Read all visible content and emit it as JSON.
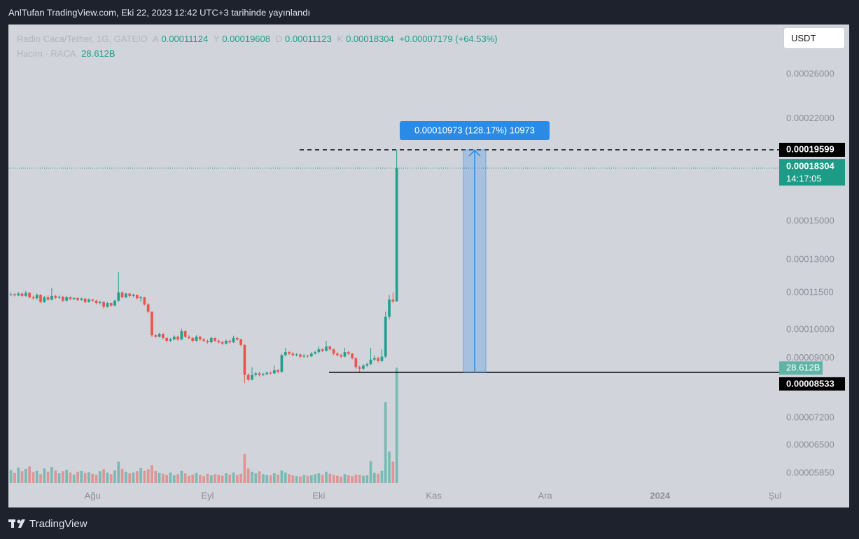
{
  "page": {
    "publisher": "AnlTufan TradingView.com, Eki 22, 2023 12:42 UTC+3 tarihinde yayınlandı",
    "brand": "TradingView",
    "currency_button": "USDT"
  },
  "chart_data": {
    "type": "candlestick",
    "symbol": "Radio Caca/Tether, 1G, GATEIO",
    "ohlc_letters": [
      "A",
      "Y",
      "D",
      "K"
    ],
    "change": "+0.00007179 (+64.53%)",
    "volume_name": "Hacim · RACA",
    "volume_label": "28.612B",
    "countdown": "14:17:05",
    "colors": {
      "up": "#22a08d",
      "down": "#ef5350"
    },
    "log_scale": true,
    "grid": false,
    "xlim": [
      -0.5,
      207.5
    ],
    "xticks": [
      {
        "value": 22,
        "label": "Ağu"
      },
      {
        "value": 53,
        "label": "Eyl"
      },
      {
        "value": 83,
        "label": "Eki"
      },
      {
        "value": 114,
        "label": "Kas"
      },
      {
        "value": 144,
        "label": "Ara"
      },
      {
        "value": 175,
        "label": "2024"
      },
      {
        "value": 206,
        "label": "Şul"
      }
    ],
    "ylim": [
      5.57e-05,
      0.000313
    ],
    "yticks": [
      {
        "value": 0.00026,
        "label": "0.00026000"
      },
      {
        "value": 0.00022,
        "label": "0.00022000"
      },
      {
        "value": 0.00015,
        "label": "0.00015000"
      },
      {
        "value": 0.00013,
        "label": "0.00013000"
      },
      {
        "value": 0.000115,
        "label": "0.00011500"
      },
      {
        "value": 0.0001,
        "label": "0.00010000"
      },
      {
        "value": 9e-05,
        "label": "0.00009000"
      },
      {
        "value": 7.2e-05,
        "label": "0.00007200"
      },
      {
        "value": 6.5e-05,
        "label": "0.00006500"
      },
      {
        "value": 5.85e-05,
        "label": "0.00005850"
      }
    ],
    "vlim": [
      0,
      33
    ],
    "high_line": 0.00019599,
    "low_line": 8.533e-05,
    "measure_label": "0.00010973 (128.17%) 10973",
    "open": [
      0.000114,
      0.0001142,
      0.0001138,
      0.0001145,
      0.0001135,
      0.0001148,
      0.000113,
      0.0001125,
      0.000114,
      0.000111,
      0.000113,
      0.000112,
      0.0001135,
      0.0001128,
      0.0001132,
      0.0001115,
      0.000113,
      0.0001122,
      0.0001126,
      0.0001118,
      0.0001124,
      0.000111,
      0.000112,
      0.0001115,
      0.0001105,
      0.000111,
      0.000109,
      0.0001105,
      0.0001095,
      0.0001115,
      0.000115,
      0.000113,
      0.0001145,
      0.0001135,
      0.000114,
      0.0001125,
      0.000113,
      0.00011,
      0.000107,
      9.8e-05,
      9.75e-05,
      9.85e-05,
      9.7e-05,
      9.6e-05,
      9.65e-05,
      9.75e-05,
      9.65e-05,
      9.95e-05,
      9.75e-05,
      9.7e-05,
      9.6e-05,
      9.75e-05,
      9.65e-05,
      9.6e-05,
      9.55e-05,
      9.7e-05,
      9.6e-05,
      9.55e-05,
      9.5e-05,
      9.6e-05,
      9.55e-05,
      9.7e-05,
      9.65e-05,
      9.45e-05,
      8.45e-05,
      8.3e-05,
      8.45e-05,
      8.5e-05,
      8.45e-05,
      8.48e-05,
      8.52e-05,
      8.5e-05,
      8.6e-05,
      8.55e-05,
      9.1e-05,
      9.2e-05,
      9.15e-05,
      9.1e-05,
      9.12e-05,
      9.05e-05,
      9.08e-05,
      9.06e-05,
      9.15e-05,
      9.2e-05,
      9.3e-05,
      9.25e-05,
      9.4e-05,
      9.3e-05,
      9.15e-05,
      9.1e-05,
      9.05e-05,
      9.2e-05,
      9.15e-05,
      9e-05,
      8.7e-05,
      8.65e-05,
      8.75e-05,
      8.8e-05,
      8.95e-05,
      9e-05,
      8.9e-05,
      9.05e-05,
      0.000105,
      0.000112,
      0.00011124
    ],
    "high": [
      0.000115,
      0.0001147,
      0.0001152,
      0.000115,
      0.0001156,
      0.0001152,
      0.0001136,
      0.0001146,
      0.0001143,
      0.0001135,
      0.0001138,
      0.000117,
      0.000114,
      0.0001138,
      0.0001135,
      0.0001136,
      0.0001133,
      0.000113,
      0.000113,
      0.0001129,
      0.0001126,
      0.0001125,
      0.0001124,
      0.0001118,
      0.0001115,
      0.0001113,
      0.000111,
      0.0001108,
      0.000112,
      0.000124,
      0.0001155,
      0.000115,
      0.0001148,
      0.0001145,
      0.0001142,
      0.0001135,
      0.0001132,
      0.0001105,
      0.0001072,
      9.85e-05,
      9.9e-05,
      9.88e-05,
      9.73e-05,
      9.7e-05,
      9.8e-05,
      9.78e-05,
      0.0001005,
      9.98e-05,
      9.8e-05,
      9.73e-05,
      9.8e-05,
      9.78e-05,
      9.7e-05,
      9.65e-05,
      9.75e-05,
      9.73e-05,
      9.65e-05,
      9.6e-05,
      9.65e-05,
      9.65e-05,
      9.78e-05,
      9.75e-05,
      9.68e-05,
      9.48e-05,
      8.5e-05,
      8.7e-05,
      8.55e-05,
      8.55e-05,
      8.52e-05,
      8.56e-05,
      8.56e-05,
      8.75e-05,
      8.64e-05,
      9.15e-05,
      9.35e-05,
      9.24e-05,
      9.2e-05,
      9.17e-05,
      9.15e-05,
      9.13e-05,
      9.11e-05,
      9.2e-05,
      9.25e-05,
      9.4e-05,
      9.34e-05,
      9.6e-05,
      9.43e-05,
      9.32e-05,
      9.2e-05,
      9.15e-05,
      9.35e-05,
      9.25e-05,
      9.18e-05,
      9.02e-05,
      8.75e-05,
      8.8e-05,
      8.85e-05,
      9.35e-05,
      9.1e-05,
      9.05e-05,
      9.3e-05,
      0.000107,
      0.000114,
      0.000115,
      0.00019608
    ],
    "low": [
      0.0001135,
      0.0001133,
      0.0001134,
      0.000113,
      0.0001132,
      0.0001125,
      0.0001118,
      0.000112,
      0.0001105,
      0.0001106,
      0.0001115,
      0.0001116,
      0.0001122,
      0.0001123,
      0.000111,
      0.0001112,
      0.0001118,
      0.0001118,
      0.0001114,
      0.0001115,
      0.0001105,
      0.0001107,
      0.000111,
      0.00011,
      0.00011,
      0.0001082,
      0.0001087,
      0.000109,
      0.0001092,
      0.000111,
      0.0001125,
      0.0001125,
      0.000113,
      0.000113,
      0.000112,
      0.000111,
      0.0001095,
      0.0001065,
      9.75e-05,
      9.7e-05,
      9.72e-05,
      9.65e-05,
      9.55e-05,
      9.57e-05,
      9.62e-05,
      9.6e-05,
      9.62e-05,
      9.7e-05,
      9.65e-05,
      9.55e-05,
      9.57e-05,
      9.6e-05,
      9.55e-05,
      9.5e-05,
      9.52e-05,
      9.56e-05,
      9.5e-05,
      9.45e-05,
      9.47e-05,
      9.5e-05,
      9.52e-05,
      9.6e-05,
      9.4e-05,
      8.2e-05,
      8.25e-05,
      8.28e-05,
      8.4e-05,
      8.4e-05,
      8.42e-05,
      8.44e-05,
      8.46e-05,
      8.47e-05,
      8.5e-05,
      8.52e-05,
      9.05e-05,
      9.1e-05,
      9.05e-05,
      9.06e-05,
      9e-05,
      9.01e-05,
      9.02e-05,
      9.03e-05,
      9.12e-05,
      9.16e-05,
      9.2e-05,
      9.22e-05,
      9.25e-05,
      9.1e-05,
      9.05e-05,
      9e-05,
      9.02e-05,
      9.1e-05,
      8.95e-05,
      8.65e-05,
      8.533e-05,
      8.6e-05,
      8.7e-05,
      8.76e-05,
      8.9e-05,
      8.85e-05,
      8.87e-05,
      9e-05,
      0.000104,
      0.0001105,
      0.00011123
    ],
    "close": [
      0.0001142,
      0.0001138,
      0.0001145,
      0.0001135,
      0.0001148,
      0.000113,
      0.0001125,
      0.000114,
      0.000111,
      0.000113,
      0.000112,
      0.0001135,
      0.0001128,
      0.0001132,
      0.0001115,
      0.000113,
      0.0001122,
      0.0001126,
      0.0001118,
      0.0001124,
      0.000111,
      0.000112,
      0.0001115,
      0.0001105,
      0.000111,
      0.000109,
      0.0001105,
      0.0001095,
      0.0001115,
      0.000115,
      0.000113,
      0.0001145,
      0.0001135,
      0.000114,
      0.0001125,
      0.000113,
      0.00011,
      0.000107,
      9.8e-05,
      9.75e-05,
      9.85e-05,
      9.7e-05,
      9.6e-05,
      9.65e-05,
      9.75e-05,
      9.65e-05,
      9.95e-05,
      9.75e-05,
      9.7e-05,
      9.6e-05,
      9.75e-05,
      9.65e-05,
      9.6e-05,
      9.55e-05,
      9.7e-05,
      9.6e-05,
      9.55e-05,
      9.5e-05,
      9.6e-05,
      9.55e-05,
      9.7e-05,
      9.65e-05,
      9.45e-05,
      8.45e-05,
      8.3e-05,
      8.45e-05,
      8.5e-05,
      8.45e-05,
      8.48e-05,
      8.52e-05,
      8.5e-05,
      8.6e-05,
      8.55e-05,
      9.1e-05,
      9.2e-05,
      9.15e-05,
      9.1e-05,
      9.12e-05,
      9.05e-05,
      9.08e-05,
      9.06e-05,
      9.15e-05,
      9.2e-05,
      9.3e-05,
      9.25e-05,
      9.4e-05,
      9.3e-05,
      9.15e-05,
      9.1e-05,
      9.05e-05,
      9.2e-05,
      9.15e-05,
      9e-05,
      8.7e-05,
      8.65e-05,
      8.75e-05,
      8.8e-05,
      8.95e-05,
      9e-05,
      8.9e-05,
      9.05e-05,
      0.000105,
      0.000112,
      0.00011124,
      0.00018304
    ],
    "volume": [
      3.2,
      2.5,
      3.8,
      2.9,
      3.5,
      4.1,
      2.7,
      3.0,
      2.2,
      3.6,
      2.8,
      4.0,
      3.1,
      2.4,
      2.9,
      3.3,
      2.6,
      2.1,
      2.8,
      3.0,
      2.5,
      2.7,
      2.3,
      2.0,
      2.9,
      3.4,
      2.6,
      2.2,
      3.1,
      5.3,
      3.5,
      2.8,
      2.4,
      2.6,
      2.9,
      3.7,
      3.0,
      3.4,
      4.4,
      3.0,
      2.5,
      2.3,
      2.0,
      2.6,
      1.9,
      2.2,
      3.0,
      2.4,
      1.8,
      2.1,
      2.5,
      2.0,
      1.7,
      2.3,
      1.9,
      2.2,
      2.0,
      1.8,
      2.4,
      2.1,
      2.6,
      2.0,
      2.3,
      7.2,
      3.6,
      2.8,
      2.4,
      2.9,
      2.2,
      2.0,
      1.9,
      2.4,
      2.1,
      3.1,
      2.6,
      2.2,
      1.9,
      1.7,
      1.6,
      2.0,
      1.8,
      1.9,
      2.2,
      2.4,
      2.0,
      2.8,
      2.3,
      2.0,
      1.8,
      1.6,
      2.2,
      1.9,
      1.7,
      2.1,
      2.0,
      1.8,
      1.9,
      5.4,
      2.5,
      2.3,
      3.0,
      20.1,
      7.8,
      5.3,
      28.612
    ]
  }
}
